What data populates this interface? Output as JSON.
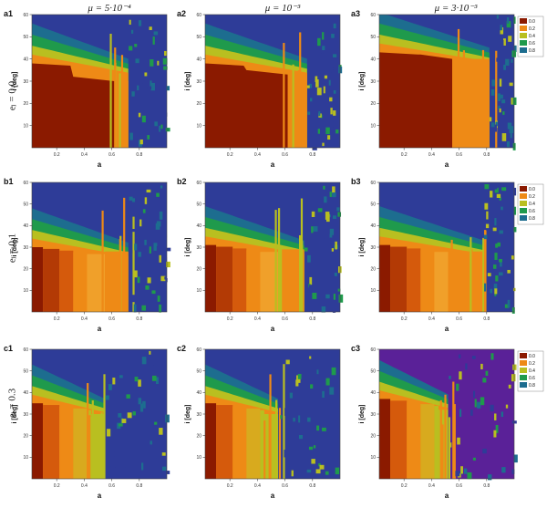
{
  "column_titles": [
    "μ = 5·10⁻⁴",
    "μ = 10⁻³",
    "μ = 3·10⁻³"
  ],
  "row_labels": [
    "eⱼ = 0.0",
    "eⱼ = 0.1",
    "eⱼ = 0.3"
  ],
  "colors": {
    "0.0": "#8b1a00",
    "0.2": "#ee8a16",
    "0.4": "#b9bf20",
    "0.6": "#1f9a4c",
    "0.8": "#1d6d8f",
    "high": "#2e3c98",
    "purple": "#5a2198"
  },
  "chart_data": [
    {
      "panel": "a1",
      "type": "heatmap",
      "xlabel": "a",
      "ylabel": "i [deg]",
      "xlim": [
        0.02,
        1.0
      ],
      "ylim": [
        0,
        60
      ],
      "xticks": [
        0.2,
        0.4,
        0.6,
        0.8
      ],
      "yticks": [
        10,
        20,
        30,
        40,
        50,
        60
      ],
      "legend": null
    },
    {
      "panel": "a2",
      "type": "heatmap",
      "xlabel": "a",
      "ylabel": "i [deg]",
      "xlim": [
        0.02,
        1.0
      ],
      "ylim": [
        0,
        60
      ],
      "xticks": [
        0.2,
        0.4,
        0.6,
        0.8
      ],
      "yticks": [
        10,
        20,
        30,
        40,
        50,
        60
      ],
      "legend": null
    },
    {
      "panel": "a3",
      "type": "heatmap",
      "xlabel": "a",
      "ylabel": "i [deg]",
      "xlim": [
        0.02,
        1.0
      ],
      "ylim": [
        0,
        60
      ],
      "xticks": [
        0.2,
        0.4,
        0.6,
        0.8
      ],
      "yticks": [
        10,
        20,
        30,
        40,
        50,
        60
      ],
      "legend": [
        "0.0",
        "0.2",
        "0.4",
        "0.6",
        "0.8"
      ]
    },
    {
      "panel": "b1",
      "type": "heatmap",
      "xlabel": "a",
      "ylabel": "i [deg]",
      "xlim": [
        0.02,
        1.0
      ],
      "ylim": [
        0,
        60
      ],
      "xticks": [
        0.2,
        0.4,
        0.6,
        0.8
      ],
      "yticks": [
        10,
        20,
        30,
        40,
        50,
        60
      ],
      "legend": null
    },
    {
      "panel": "b2",
      "type": "heatmap",
      "xlabel": "a",
      "ylabel": "i [deg]",
      "xlim": [
        0.02,
        1.0
      ],
      "ylim": [
        0,
        60
      ],
      "xticks": [
        0.2,
        0.4,
        0.6,
        0.8
      ],
      "yticks": [
        10,
        20,
        30,
        40,
        50,
        60
      ],
      "legend": null
    },
    {
      "panel": "b3",
      "type": "heatmap",
      "xlabel": "a",
      "ylabel": "i [deg]",
      "xlim": [
        0.02,
        1.0
      ],
      "ylim": [
        0,
        60
      ],
      "xticks": [
        0.2,
        0.4,
        0.6,
        0.8
      ],
      "yticks": [
        10,
        20,
        30,
        40,
        50,
        60
      ],
      "legend": [
        "0.0",
        "0.2",
        "0.4",
        "0.6",
        "0.8"
      ]
    },
    {
      "panel": "c1",
      "type": "heatmap",
      "xlabel": "a",
      "ylabel": "i [deg]",
      "xlim": [
        0.02,
        1.0
      ],
      "ylim": [
        0,
        60
      ],
      "xticks": [
        0.2,
        0.4,
        0.6,
        0.8
      ],
      "yticks": [
        10,
        20,
        30,
        40,
        50,
        60
      ],
      "legend": null
    },
    {
      "panel": "c2",
      "type": "heatmap",
      "xlabel": "a",
      "ylabel": "i [deg]",
      "xlim": [
        0.02,
        1.0
      ],
      "ylim": [
        0,
        60
      ],
      "xticks": [
        0.2,
        0.4,
        0.6,
        0.8
      ],
      "yticks": [
        10,
        20,
        30,
        40,
        50,
        60
      ],
      "legend": null
    },
    {
      "panel": "c3",
      "type": "heatmap",
      "xlabel": "a",
      "ylabel": "i [deg]",
      "xlim": [
        0.02,
        1.0
      ],
      "ylim": [
        0,
        60
      ],
      "xticks": [
        0.2,
        0.4,
        0.6,
        0.8
      ],
      "yticks": [
        10,
        20,
        30,
        40,
        50,
        60
      ],
      "legend": [
        "0.0",
        "0.2",
        "0.4",
        "0.6",
        "0.8"
      ]
    }
  ]
}
